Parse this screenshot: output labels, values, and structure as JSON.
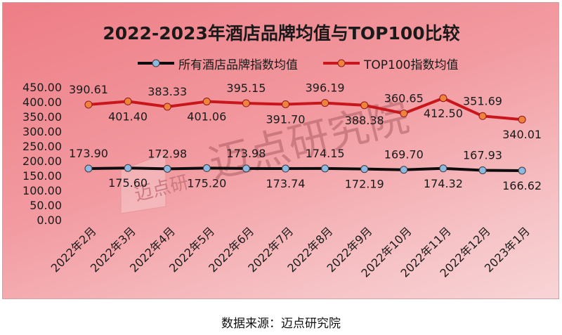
{
  "source_note": "数据来源：迈点研究院",
  "watermark": "迈点研究院",
  "colors": {
    "series_all": "#0d0d0d",
    "series_all_marker": "#8db8e0",
    "series_top": "#c8161d",
    "series_top_marker": "#f0823c"
  },
  "chart_data": {
    "type": "line",
    "title": "2022-2023年酒店品牌均值与TOP100比较",
    "categories": [
      "2022年2月",
      "2022年3月",
      "2022年4月",
      "2022年5月",
      "2022年6月",
      "2022年7月",
      "2022年8月",
      "2022年9月",
      "2022年10月",
      "2022年11月",
      "2022年12月",
      "2023年1月"
    ],
    "series": [
      {
        "name": "所有酒店品牌指数均值",
        "values": [
          173.9,
          175.6,
          172.98,
          175.2,
          173.98,
          173.74,
          174.15,
          172.19,
          169.7,
          174.32,
          167.93,
          166.62
        ]
      },
      {
        "name": "TOP100指数均值",
        "values": [
          390.61,
          401.4,
          383.33,
          401.06,
          395.15,
          391.7,
          396.19,
          388.38,
          360.65,
          412.5,
          351.69,
          340.01
        ]
      }
    ],
    "value_labels": [
      [
        "173.90",
        "175.60",
        "172.98",
        "175.20",
        "173.98",
        "173.74",
        "174.15",
        "172.19",
        "169.70",
        "174.32",
        "167.93",
        "166.62"
      ],
      [
        "390.61",
        "401.40",
        "383.33",
        "401.06",
        "395.15",
        "391.70",
        "396.19",
        "388.38",
        "360.65",
        "412.50",
        "351.69",
        "340.01"
      ]
    ],
    "yticks": [
      "0.00",
      "50.00",
      "100.00",
      "150.00",
      "200.00",
      "250.00",
      "300.00",
      "350.00",
      "400.00",
      "450.00"
    ],
    "ylim": [
      0,
      450
    ],
    "xlabel": "",
    "ylabel": "",
    "grid": false,
    "legend_position": "top"
  }
}
